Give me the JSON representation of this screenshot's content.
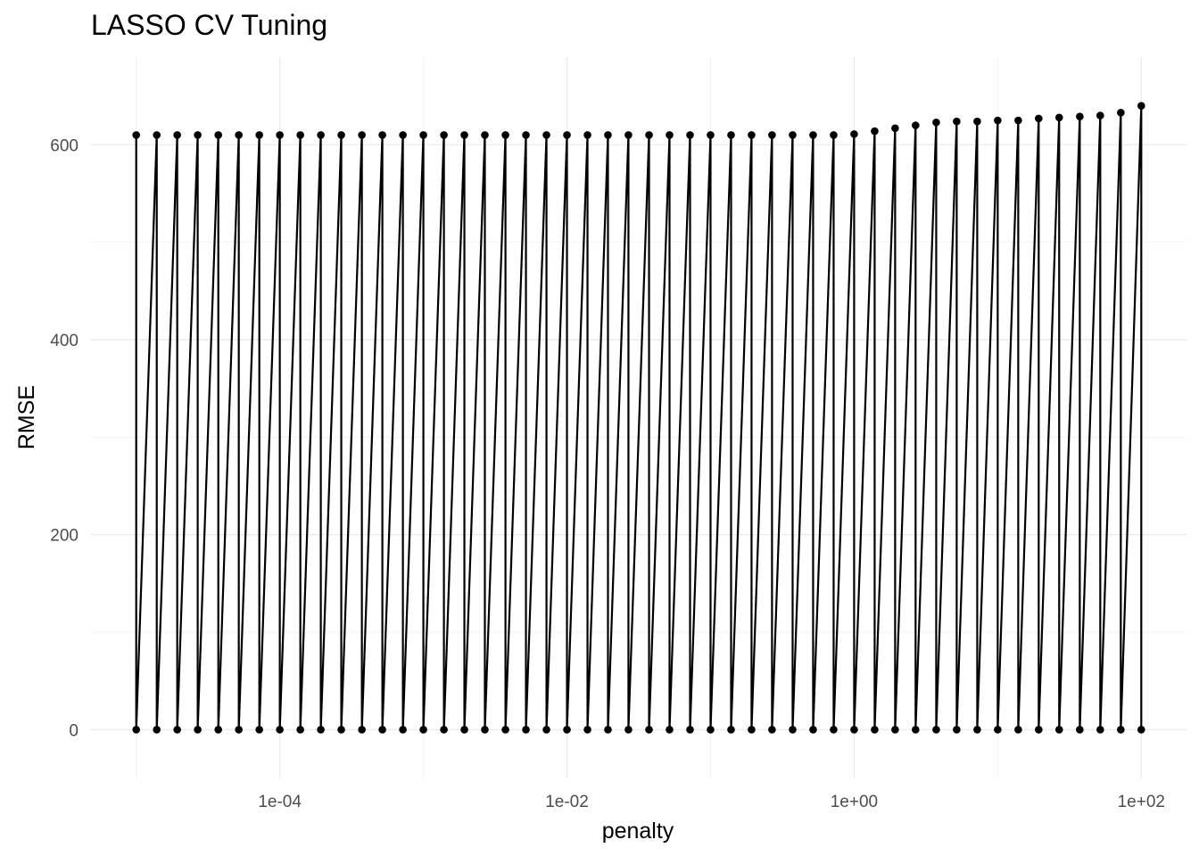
{
  "chart_data": {
    "type": "line",
    "title": "LASSO CV Tuning",
    "xlabel": "penalty",
    "ylabel": "RMSE",
    "x_scale": "log10",
    "x_range": [
      1e-05,
      100
    ],
    "ylim": [
      -50,
      690
    ],
    "x_ticks": [
      {
        "value": 0.0001,
        "label": "1e-04"
      },
      {
        "value": 0.01,
        "label": "1e-02"
      },
      {
        "value": 1,
        "label": "1e+00"
      },
      {
        "value": 100,
        "label": "1e+02"
      }
    ],
    "y_ticks": [
      {
        "value": 0,
        "label": "0"
      },
      {
        "value": 200,
        "label": "200"
      },
      {
        "value": 400,
        "label": "400"
      },
      {
        "value": 600,
        "label": "600"
      }
    ],
    "grid": true,
    "color": "#000000",
    "series": [
      {
        "penalty": [
          1e-05,
          1.39e-05,
          1.93e-05,
          2.68e-05,
          3.73e-05,
          5.18e-05,
          7.2e-05,
          0.0001,
          0.000139,
          0.000193,
          0.000268,
          0.000373,
          0.000518,
          0.00072,
          0.001,
          0.00139,
          0.00193,
          0.00268,
          0.00373,
          0.00518,
          0.0072,
          0.01,
          0.0139,
          0.0193,
          0.0268,
          0.0373,
          0.0518,
          0.072,
          0.1,
          0.139,
          0.193,
          0.268,
          0.373,
          0.518,
          0.72,
          1,
          1.39,
          1.93,
          2.68,
          3.73,
          5.18,
          7.2,
          10,
          13.9,
          19.3,
          26.8,
          37.3,
          51.8,
          72,
          100
        ],
        "rmse_low": [
          0,
          0,
          0,
          0,
          0,
          0,
          0,
          0,
          0,
          0,
          0,
          0,
          0,
          0,
          0,
          0,
          0,
          0,
          0,
          0,
          0,
          0,
          0,
          0,
          0,
          0,
          0,
          0,
          0,
          0,
          0,
          0,
          0,
          0,
          0,
          0,
          0,
          0,
          0,
          0,
          0,
          0,
          0,
          0,
          0,
          0,
          0,
          0,
          0,
          0
        ],
        "rmse_high": [
          610,
          610,
          610,
          610,
          610,
          610,
          610,
          610,
          610,
          610,
          610,
          610,
          610,
          610,
          610,
          610,
          610,
          610,
          610,
          610,
          610,
          610,
          610,
          610,
          610,
          610,
          610,
          610,
          610,
          610,
          610,
          610,
          610,
          610,
          610,
          611,
          614,
          617,
          620,
          623,
          624,
          624,
          625,
          625,
          627,
          628,
          629,
          630,
          633,
          640
        ]
      }
    ]
  }
}
